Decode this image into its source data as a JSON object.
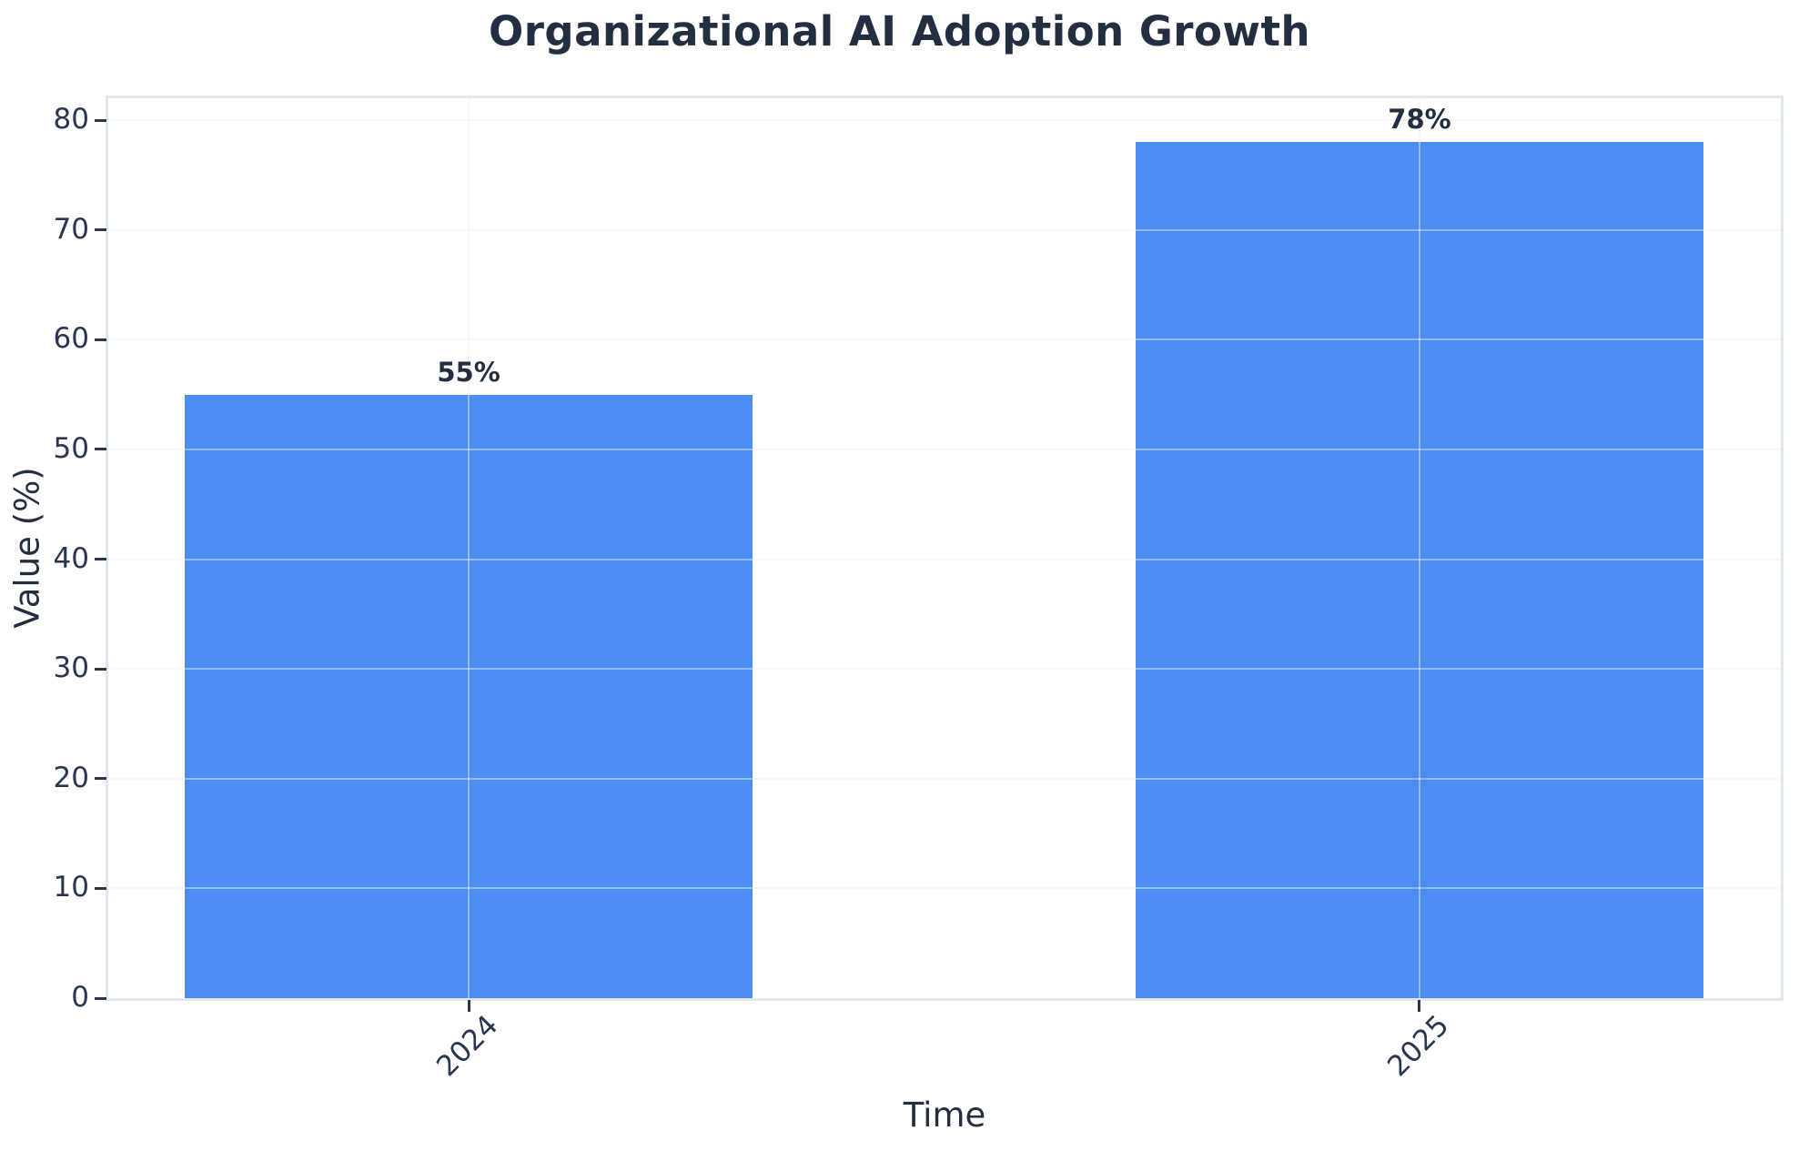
{
  "chart_data": {
    "type": "bar",
    "title": "Organizational AI Adoption Growth",
    "categories": [
      "2024",
      "2025"
    ],
    "values": [
      55,
      78
    ],
    "value_labels": [
      "55%",
      "78%"
    ],
    "xlabel": "Time",
    "ylabel": "Value (%)",
    "ylim": [
      0,
      82
    ],
    "yticks": [
      0,
      10,
      20,
      30,
      40,
      50,
      60,
      70,
      80
    ],
    "grid": true,
    "legend_position": "none",
    "x_tick_rotation_deg": 45,
    "colors": {
      "bar": "#4C8DF2",
      "text": "#232E41",
      "tick_text": "#2A3550",
      "spine": "#E2E8F0",
      "gridline": "#F0F3F7",
      "background": "#FFFFFF"
    }
  }
}
